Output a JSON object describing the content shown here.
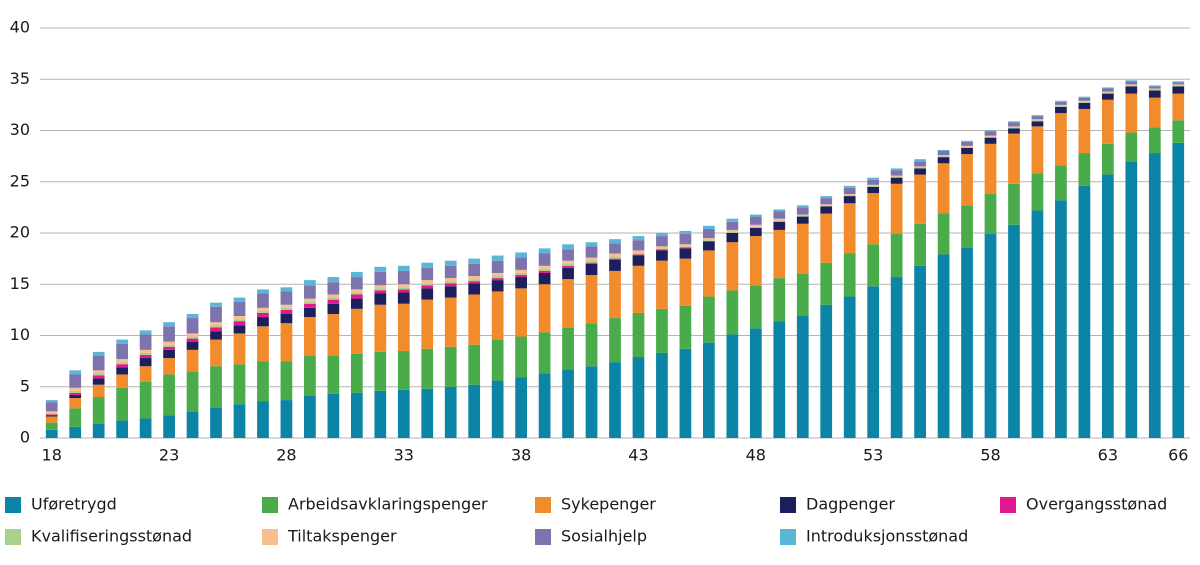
{
  "chart_data": {
    "type": "bar",
    "stacked": true,
    "grid": true,
    "legend": "bottom",
    "x": [
      18,
      19,
      20,
      21,
      22,
      23,
      24,
      25,
      26,
      27,
      28,
      29,
      30,
      31,
      32,
      33,
      34,
      35,
      36,
      37,
      38,
      39,
      40,
      41,
      42,
      43,
      44,
      45,
      46,
      47,
      48,
      49,
      50,
      51,
      52,
      53,
      54,
      55,
      56,
      57,
      58,
      59,
      60,
      61,
      62,
      63,
      64,
      65,
      66
    ],
    "xlim": [
      17.5,
      66.5
    ],
    "xticks": [
      18,
      23,
      28,
      33,
      38,
      43,
      48,
      53,
      58,
      63,
      66
    ],
    "ylim": [
      0,
      40
    ],
    "yticks": [
      0,
      5,
      10,
      15,
      20,
      25,
      30,
      35,
      40
    ],
    "series": [
      {
        "name": "Uføretrygd",
        "color": "#0b84a5",
        "values": [
          0.8,
          1.1,
          1.4,
          1.7,
          1.9,
          2.2,
          2.6,
          3.0,
          3.3,
          3.6,
          3.7,
          4.1,
          4.3,
          4.4,
          4.6,
          4.7,
          4.8,
          5.0,
          5.2,
          5.6,
          5.9,
          6.3,
          6.7,
          7.0,
          7.4,
          7.9,
          8.3,
          8.7,
          9.3,
          10.1,
          10.7,
          11.4,
          11.9,
          13.0,
          13.8,
          14.8,
          15.7,
          16.8,
          17.9,
          18.6,
          19.9,
          20.8,
          22.2,
          23.2,
          24.6,
          25.7,
          27.0,
          27.8,
          28.8
        ]
      },
      {
        "name": "Arbeidsavklaringspenger",
        "color": "#4aab4a",
        "values": [
          0.7,
          1.8,
          2.6,
          3.2,
          3.6,
          4.0,
          3.9,
          4.0,
          3.9,
          3.9,
          3.8,
          3.9,
          3.7,
          3.8,
          3.8,
          3.8,
          3.9,
          3.9,
          3.9,
          4.0,
          4.0,
          4.0,
          4.1,
          4.2,
          4.3,
          4.3,
          4.3,
          4.2,
          4.5,
          4.3,
          4.2,
          4.2,
          4.1,
          4.1,
          4.2,
          4.1,
          4.2,
          4.1,
          4.0,
          4.1,
          3.9,
          4.0,
          3.6,
          3.4,
          3.2,
          3.0,
          2.8,
          2.5,
          2.2
        ]
      },
      {
        "name": "Sykepenger",
        "color": "#f28b2c",
        "values": [
          0.6,
          1.0,
          1.2,
          1.3,
          1.5,
          1.6,
          2.1,
          2.6,
          3.0,
          3.4,
          3.7,
          3.8,
          4.1,
          4.4,
          4.6,
          4.6,
          4.8,
          4.8,
          4.9,
          4.7,
          4.7,
          4.7,
          4.7,
          4.7,
          4.6,
          4.6,
          4.7,
          4.6,
          4.5,
          4.7,
          4.8,
          4.7,
          4.9,
          4.8,
          4.9,
          5.0,
          4.9,
          4.8,
          4.9,
          5.0,
          4.9,
          4.9,
          4.6,
          5.1,
          4.3,
          4.3,
          3.8,
          2.9,
          2.6
        ]
      },
      {
        "name": "Dagpenger",
        "color": "#1d1f5c",
        "values": [
          0.1,
          0.3,
          0.6,
          0.7,
          0.8,
          0.8,
          0.8,
          0.8,
          0.8,
          0.9,
          0.9,
          0.9,
          1.0,
          1.0,
          1.1,
          1.1,
          1.1,
          1.1,
          1.1,
          1.1,
          1.1,
          1.1,
          1.1,
          1.1,
          1.1,
          1.0,
          1.0,
          1.0,
          0.9,
          0.9,
          0.8,
          0.8,
          0.7,
          0.7,
          0.7,
          0.6,
          0.6,
          0.6,
          0.6,
          0.6,
          0.6,
          0.5,
          0.5,
          0.6,
          0.6,
          0.6,
          0.7,
          0.7,
          0.7
        ]
      },
      {
        "name": "Overgangsstønad",
        "color": "#e2198c",
        "values": [
          0.1,
          0.2,
          0.3,
          0.3,
          0.3,
          0.3,
          0.3,
          0.4,
          0.4,
          0.4,
          0.4,
          0.4,
          0.4,
          0.4,
          0.3,
          0.3,
          0.3,
          0.3,
          0.2,
          0.2,
          0.2,
          0.2,
          0.2,
          0.1,
          0.1,
          0.1,
          0.1,
          0.1,
          0,
          0,
          0,
          0,
          0,
          0,
          0,
          0,
          0,
          0,
          0,
          0,
          0,
          0,
          0,
          0,
          0,
          0,
          0,
          0,
          0
        ]
      },
      {
        "name": "Kvalifiseringsstønad",
        "color": "#a9d18e",
        "values": [
          0.1,
          0.2,
          0.2,
          0.2,
          0.2,
          0.2,
          0.2,
          0.2,
          0.2,
          0.2,
          0.2,
          0.2,
          0.2,
          0.2,
          0.2,
          0.2,
          0.2,
          0.2,
          0.2,
          0.2,
          0.2,
          0.2,
          0.2,
          0.2,
          0.2,
          0.1,
          0.1,
          0.1,
          0.1,
          0.1,
          0.1,
          0.1,
          0.1,
          0.1,
          0.1,
          0.1,
          0.1,
          0.1,
          0.1,
          0.1,
          0.1,
          0.1,
          0.1,
          0.1,
          0.1,
          0.1,
          0.1,
          0.1,
          0.1
        ]
      },
      {
        "name": "Tiltakspenger",
        "color": "#f9c08f",
        "values": [
          0.2,
          0.3,
          0.3,
          0.3,
          0.3,
          0.3,
          0.3,
          0.3,
          0.3,
          0.3,
          0.3,
          0.3,
          0.3,
          0.3,
          0.3,
          0.3,
          0.3,
          0.3,
          0.3,
          0.3,
          0.3,
          0.3,
          0.3,
          0.3,
          0.3,
          0.3,
          0.2,
          0.2,
          0.2,
          0.2,
          0.2,
          0.2,
          0.1,
          0.1,
          0.1,
          0.1,
          0.1,
          0.1,
          0.1,
          0.1,
          0.1,
          0.1,
          0.1,
          0.1,
          0.1,
          0.1,
          0.1,
          0.1,
          0.1
        ]
      },
      {
        "name": "Sosialhjelp",
        "color": "#7d73ad",
        "values": [
          0.9,
          1.3,
          1.4,
          1.5,
          1.5,
          1.5,
          1.5,
          1.5,
          1.4,
          1.4,
          1.3,
          1.3,
          1.2,
          1.2,
          1.3,
          1.3,
          1.2,
          1.2,
          1.2,
          1.2,
          1.2,
          1.2,
          1.1,
          1.1,
          1.0,
          1.0,
          1.0,
          1.0,
          0.9,
          0.8,
          0.8,
          0.7,
          0.7,
          0.6,
          0.6,
          0.5,
          0.5,
          0.5,
          0.4,
          0.4,
          0.4,
          0.4,
          0.3,
          0.3,
          0.3,
          0.3,
          0.3,
          0.2,
          0.2
        ]
      },
      {
        "name": "Introduksjonsstønad",
        "color": "#5cb5d6",
        "values": [
          0.2,
          0.4,
          0.4,
          0.4,
          0.4,
          0.4,
          0.4,
          0.4,
          0.4,
          0.4,
          0.4,
          0.5,
          0.5,
          0.5,
          0.5,
          0.5,
          0.5,
          0.5,
          0.5,
          0.5,
          0.5,
          0.5,
          0.5,
          0.4,
          0.4,
          0.4,
          0.3,
          0.3,
          0.3,
          0.3,
          0.2,
          0.2,
          0.2,
          0.2,
          0.2,
          0.2,
          0.2,
          0.2,
          0.1,
          0.1,
          0.1,
          0.1,
          0.1,
          0.1,
          0.1,
          0.1,
          0.1,
          0.1,
          0.1
        ]
      }
    ]
  }
}
